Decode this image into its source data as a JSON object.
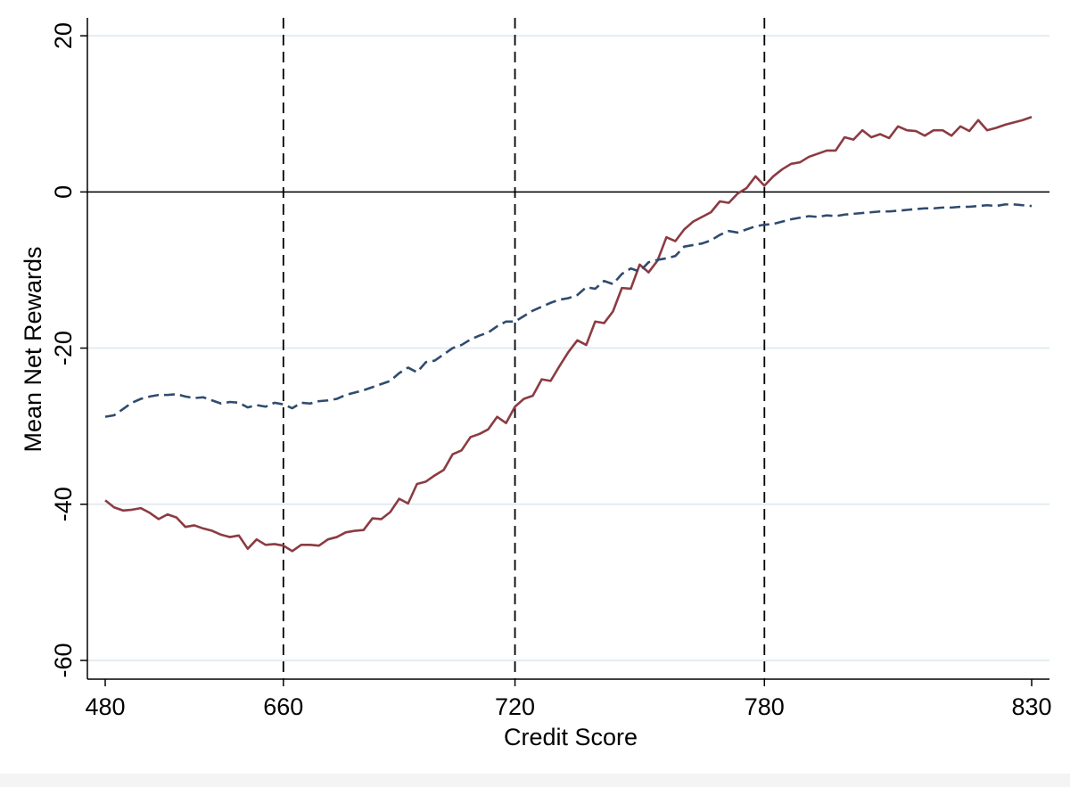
{
  "chart_data": {
    "type": "line",
    "xlabel": "Credit Score",
    "ylabel": "Mean Net Rewards",
    "categories": [
      "480",
      null,
      null,
      null,
      null,
      null,
      null,
      null,
      null,
      null,
      null,
      null,
      null,
      null,
      null,
      null,
      null,
      null,
      null,
      null,
      "660",
      null,
      null,
      null,
      null,
      null,
      null,
      null,
      null,
      null,
      null,
      null,
      null,
      null,
      null,
      null,
      null,
      null,
      null,
      null,
      null,
      null,
      null,
      null,
      null,
      null,
      "720",
      null,
      null,
      null,
      null,
      null,
      null,
      null,
      null,
      null,
      null,
      null,
      null,
      null,
      null,
      null,
      null,
      null,
      null,
      null,
      null,
      null,
      null,
      null,
      null,
      null,
      null,
      null,
      "780",
      null,
      null,
      null,
      null,
      null,
      null,
      null,
      null,
      null,
      null,
      null,
      null,
      null,
      null,
      null,
      null,
      null,
      null,
      null,
      null,
      null,
      null,
      null,
      null,
      null,
      null,
      null,
      null,
      null,
      "830"
    ],
    "series": [
      {
        "color": "#8c3b42",
        "dash": "solid",
        "values": [
          -39.5,
          -40.4,
          -40.8,
          -40.7,
          -40.5,
          -41.1,
          -41.9,
          -41.3,
          -41.7,
          -42.9,
          -42.7,
          -43.1,
          -43.4,
          -43.9,
          -44.2,
          -44.0,
          -45.7,
          -44.5,
          -45.2,
          -45.1,
          -45.3,
          -46.0,
          -45.2,
          -45.2,
          -45.3,
          -44.5,
          -44.2,
          -43.6,
          -43.4,
          -43.3,
          -41.8,
          -41.9,
          -41.0,
          -39.3,
          -39.9,
          -37.4,
          -37.1,
          -36.3,
          -35.6,
          -33.6,
          -33.1,
          -31.4,
          -31.0,
          -30.4,
          -28.8,
          -29.6,
          -27.5,
          -26.5,
          -26.1,
          -24.0,
          -24.2,
          -22.3,
          -20.5,
          -19.0,
          -19.6,
          -16.6,
          -16.8,
          -15.3,
          -12.3,
          -12.4,
          -9.3,
          -10.3,
          -8.8,
          -5.8,
          -6.3,
          -4.8,
          -3.8,
          -3.2,
          -2.6,
          -1.2,
          -1.4,
          -0.2,
          0.5,
          2.0,
          0.8,
          2.0,
          2.9,
          3.6,
          3.8,
          4.5,
          4.9,
          5.3,
          5.3,
          7.0,
          6.7,
          7.9,
          7.0,
          7.4,
          6.9,
          8.4,
          7.9,
          7.8,
          7.2,
          7.9,
          7.9,
          7.2,
          8.4,
          7.8,
          9.2,
          7.9,
          8.2,
          8.6,
          8.9,
          9.2,
          9.6
        ]
      },
      {
        "color": "#2f4b6f",
        "dash": "dashed",
        "values": [
          -28.8,
          -28.6,
          -27.8,
          -27.0,
          -26.5,
          -26.2,
          -26.0,
          -26.0,
          -25.9,
          -26.2,
          -26.4,
          -26.3,
          -26.7,
          -27.1,
          -26.9,
          -27.0,
          -27.6,
          -27.3,
          -27.5,
          -27.0,
          -27.2,
          -27.7,
          -27.0,
          -27.1,
          -26.8,
          -26.7,
          -26.5,
          -26.0,
          -25.7,
          -25.4,
          -25.0,
          -24.6,
          -24.2,
          -23.2,
          -22.5,
          -23.1,
          -21.8,
          -21.6,
          -20.8,
          -20.0,
          -19.6,
          -18.9,
          -18.4,
          -18.0,
          -17.2,
          -16.6,
          -16.6,
          -15.9,
          -15.2,
          -14.7,
          -14.2,
          -13.8,
          -13.6,
          -13.2,
          -12.2,
          -12.4,
          -11.4,
          -11.8,
          -10.5,
          -9.8,
          -10.2,
          -9.0,
          -8.7,
          -8.5,
          -8.2,
          -7.0,
          -6.8,
          -6.6,
          -6.2,
          -5.5,
          -5.0,
          -5.2,
          -4.8,
          -4.4,
          -4.2,
          -4.1,
          -3.8,
          -3.5,
          -3.3,
          -3.1,
          -3.2,
          -3.0,
          -3.1,
          -2.9,
          -2.8,
          -2.7,
          -2.6,
          -2.5,
          -2.5,
          -2.4,
          -2.3,
          -2.2,
          -2.1,
          -2.1,
          -2.0,
          -2.0,
          -1.9,
          -1.9,
          -1.8,
          -1.7,
          -1.8,
          -1.6,
          -1.6,
          -1.7,
          -1.8
        ]
      }
    ],
    "vlines": [
      "660",
      "720",
      "780"
    ],
    "hline": 0,
    "ylim": [
      -62.4,
      22.3
    ],
    "yticks": [
      -60,
      -40,
      -20,
      0,
      20
    ],
    "grid": true
  }
}
